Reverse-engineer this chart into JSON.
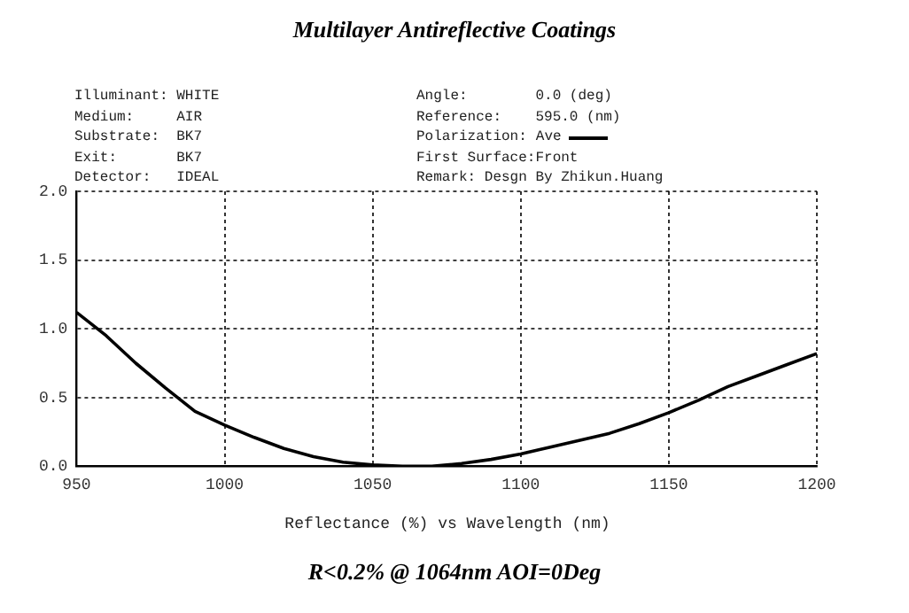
{
  "chart_data": {
    "type": "line",
    "title": "Multilayer Antireflective Coatings",
    "xlabel": "Reflectance (%) vs Wavelength (nm)",
    "annotations": [
      "Illuminant: WHITE",
      "Medium:     AIR",
      "Substrate:  BK7",
      "Exit:       BK7",
      "Detector:   IDEAL",
      "Angle:        0.0 (deg)",
      "Reference:    595.0 (nm)",
      "Polarization:",
      "First Surface:Front",
      "Remark: Desgn By Zhikun.Huang",
      "R<0.2% @ 1064nm AOI=0Deg"
    ],
    "x": [
      950,
      960,
      970,
      980,
      990,
      1000,
      1010,
      1020,
      1030,
      1040,
      1050,
      1060,
      1070,
      1080,
      1090,
      1100,
      1110,
      1120,
      1130,
      1140,
      1150,
      1160,
      1170,
      1180,
      1190,
      1200
    ],
    "series": [
      {
        "name": "Ave",
        "color": "#000000",
        "values": [
          1.12,
          0.95,
          0.75,
          0.57,
          0.4,
          0.3,
          0.21,
          0.13,
          0.07,
          0.03,
          0.01,
          0.0,
          0.0,
          0.02,
          0.05,
          0.09,
          0.14,
          0.19,
          0.24,
          0.31,
          0.39,
          0.48,
          0.58,
          0.66,
          0.74,
          0.82
        ]
      }
    ],
    "xlim": [
      950,
      1200
    ],
    "xticks": [
      950,
      1000,
      1050,
      1100,
      1150,
      1200
    ],
    "ylim": [
      0,
      2
    ],
    "yticks": [
      {
        "value": 0,
        "label": "0.0"
      },
      {
        "value": 0.5,
        "label": "0.5"
      },
      {
        "value": 1,
        "label": "1.0"
      },
      {
        "value": 1.5,
        "label": "1.5"
      },
      {
        "value": 2,
        "label": "2.0"
      }
    ],
    "grid": true,
    "legend": "top right",
    "marker": "none",
    "line_style": "solid"
  }
}
